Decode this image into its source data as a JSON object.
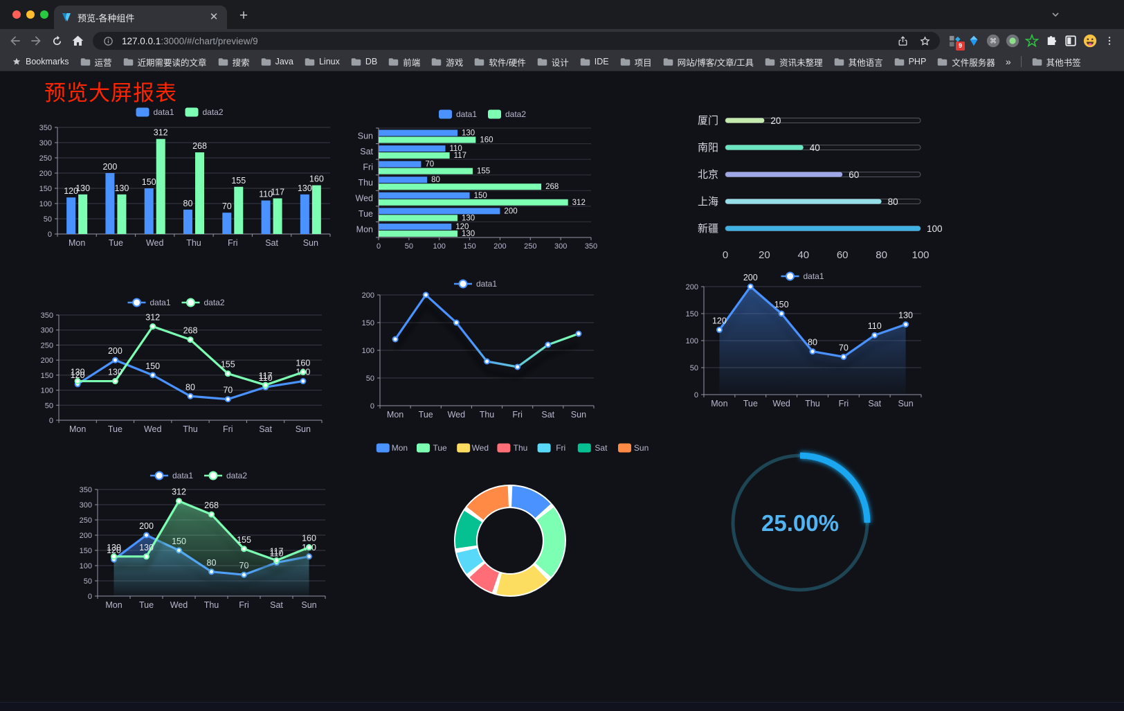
{
  "browser": {
    "tab_title": "预览-各种组件",
    "url_host": "127.0.0.1",
    "url_rest": ":3000/#/chart/preview/9",
    "extension_badge": "9",
    "cmd_glyph": "⌘",
    "kebab_glyph": "⋮",
    "bookmarks_label": "Bookmarks",
    "bookmarks": [
      "运营",
      "近期需要读的文章",
      "搜索",
      "Java",
      "Linux",
      "DB",
      "前端",
      "游戏",
      "软件/硬件",
      "设计",
      "IDE",
      "项目",
      "网站/博客/文章/工具",
      "资讯未整理",
      "其他语言",
      "PHP",
      "文件服务器"
    ],
    "bookmarks_overflow": "»",
    "other_bookmarks": "其他书签"
  },
  "page": {
    "title": "预览大屏报表",
    "title_color": "#ff2501",
    "background": "#101218"
  },
  "chart_data": [
    {
      "id": "c1",
      "type": "bar",
      "categories": [
        "Mon",
        "Tue",
        "Wed",
        "Thu",
        "Fri",
        "Sat",
        "Sun"
      ],
      "series": [
        {
          "name": "data1",
          "color": "#4992ff",
          "values": [
            120,
            200,
            150,
            80,
            70,
            110,
            130
          ]
        },
        {
          "name": "data2",
          "color": "#7cffb2",
          "values": [
            130,
            130,
            312,
            268,
            155,
            117,
            160
          ]
        }
      ],
      "ylim": [
        0,
        350
      ],
      "ytick": 50,
      "legend_position": "top",
      "grid": true
    },
    {
      "id": "c2",
      "type": "bar-horizontal",
      "categories": [
        "Sun",
        "Sat",
        "Fri",
        "Thu",
        "Wed",
        "Tue",
        "Mon"
      ],
      "series": [
        {
          "name": "data1",
          "color": "#4992ff",
          "values": [
            130,
            110,
            70,
            80,
            150,
            200,
            120
          ]
        },
        {
          "name": "data2",
          "color": "#7cffb2",
          "values": [
            160,
            117,
            155,
            268,
            312,
            130,
            130
          ]
        }
      ],
      "xlim": [
        0,
        350
      ],
      "xtick": 50,
      "legend_position": "top"
    },
    {
      "id": "c3",
      "type": "progress-bars",
      "items": [
        {
          "label": "厦门",
          "value": 20,
          "color": "#c4ebad"
        },
        {
          "label": "南阳",
          "value": 40,
          "color": "#6be6c1"
        },
        {
          "label": "北京",
          "value": 60,
          "color": "#a0a7e6"
        },
        {
          "label": "上海",
          "value": 80,
          "color": "#96dee8"
        },
        {
          "label": "新疆",
          "value": 100,
          "color": "#3fb1e3"
        }
      ],
      "xlim": [
        0,
        100
      ],
      "xticks": [
        0,
        20,
        40,
        60,
        80,
        100
      ]
    },
    {
      "id": "c4",
      "type": "line",
      "categories": [
        "Mon",
        "Tue",
        "Wed",
        "Thu",
        "Fri",
        "Sat",
        "Sun"
      ],
      "series": [
        {
          "name": "data1",
          "color": "#4992ff",
          "values": [
            120,
            200,
            150,
            80,
            70,
            110,
            130
          ]
        },
        {
          "name": "data2",
          "color": "#7cffb2",
          "values": [
            130,
            130,
            312,
            268,
            155,
            117,
            160
          ]
        }
      ],
      "ylim": [
        0,
        350
      ],
      "ytick": 50,
      "labels": true,
      "legend_position": "top"
    },
    {
      "id": "c5",
      "type": "line",
      "categories": [
        "Mon",
        "Tue",
        "Wed",
        "Thu",
        "Fri",
        "Sat",
        "Sun"
      ],
      "series": [
        {
          "name": "data1",
          "gradient": [
            "#4992ff",
            "#7cffb2"
          ],
          "values": [
            120,
            200,
            150,
            80,
            70,
            110,
            130
          ]
        }
      ],
      "ylim": [
        0,
        200
      ],
      "ytick": 50,
      "labels": false,
      "shadow": true,
      "legend_position": "top"
    },
    {
      "id": "c6",
      "type": "area",
      "categories": [
        "Mon",
        "Tue",
        "Wed",
        "Thu",
        "Fri",
        "Sat",
        "Sun"
      ],
      "series": [
        {
          "name": "data1",
          "color": "#4992ff",
          "values": [
            120,
            200,
            150,
            80,
            70,
            110,
            130
          ]
        }
      ],
      "ylim": [
        0,
        200
      ],
      "ytick": 50,
      "labels": true,
      "shadow": true,
      "legend_position": "top"
    },
    {
      "id": "c7",
      "type": "area",
      "categories": [
        "Mon",
        "Tue",
        "Wed",
        "Thu",
        "Fri",
        "Sat",
        "Sun"
      ],
      "series": [
        {
          "name": "data1",
          "color": "#4992ff",
          "values": [
            120,
            200,
            150,
            80,
            70,
            110,
            130
          ]
        },
        {
          "name": "data2",
          "color": "#7cffb2",
          "values": [
            130,
            130,
            312,
            268,
            155,
            117,
            160
          ]
        }
      ],
      "ylim": [
        0,
        350
      ],
      "ytick": 50,
      "labels": true,
      "shadow": true,
      "legend_position": "top"
    },
    {
      "id": "c8",
      "type": "pie",
      "labels": [
        "Mon",
        "Tue",
        "Wed",
        "Thu",
        "Fri",
        "Sat",
        "Sun"
      ],
      "values": [
        120,
        200,
        150,
        80,
        70,
        110,
        130
      ],
      "colors": [
        "#4992ff",
        "#7cffb2",
        "#fddd60",
        "#ff6e76",
        "#58d9f9",
        "#05c091",
        "#ff8a45"
      ],
      "legend_position": "top",
      "donut": true,
      "border_color": "#ffffff"
    },
    {
      "id": "c9",
      "type": "gauge",
      "value_text": "25.00%",
      "percent": 25,
      "color": "#1aa7f0",
      "track_color": "#1d4553",
      "text_color": "#53b4f2"
    }
  ]
}
